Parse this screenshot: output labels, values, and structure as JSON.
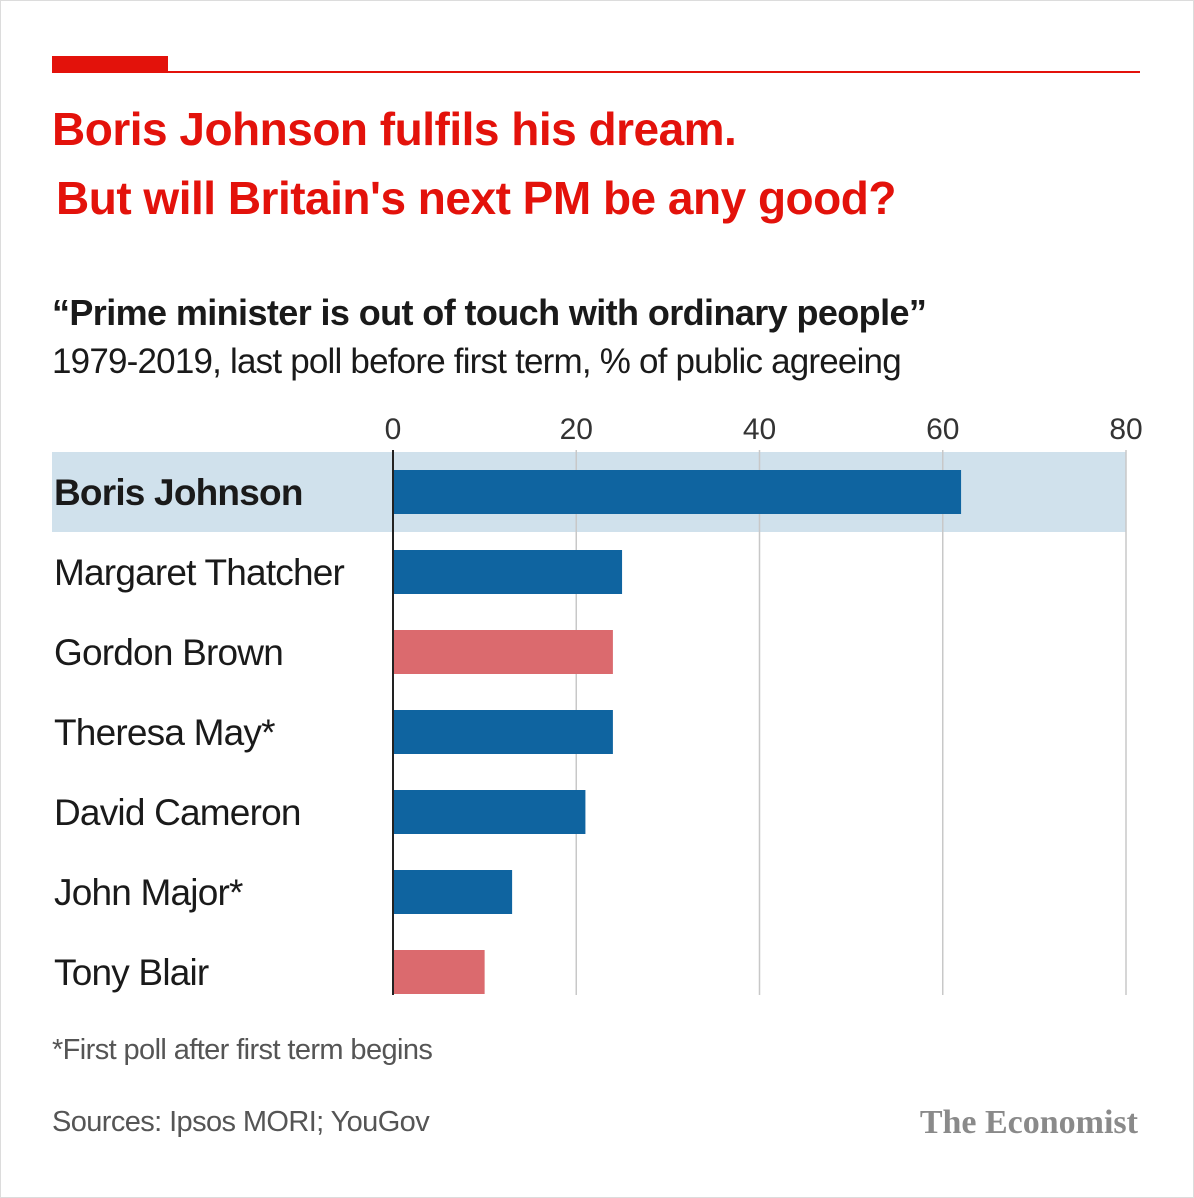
{
  "header": {
    "headline_line_1": "Boris Johnson fulfils his dream.",
    "headline_line_2": "But will Britain's next PM be any good?",
    "subtitle": "“Prime minister is out of touch with ordinary people”",
    "description": "1979-2019, last poll before first term, % of public agreeing"
  },
  "colors": {
    "accent": "#e3120b",
    "conservative_bar": "#0f64a0",
    "labour_bar": "#db6a6e",
    "highlight_band": "#d0e1ec",
    "gridline": "#c8c8c8",
    "baseline": "#222222"
  },
  "chart_data": {
    "type": "bar",
    "orientation": "horizontal",
    "title": "“Prime minister is out of touch with ordinary people”",
    "xlim": [
      0,
      80
    ],
    "ticks": [
      "0",
      "20",
      "40",
      "60",
      "80"
    ],
    "tick_values": [
      0,
      20,
      40,
      60,
      80
    ],
    "grid": true,
    "categories": [
      "Boris Johnson",
      "Margaret Thatcher",
      "Gordon Brown",
      "Theresa May*",
      "David Cameron",
      "John Major*",
      "Tony Blair"
    ],
    "values": [
      62,
      25,
      24,
      24,
      21,
      13,
      10
    ],
    "party": [
      "conservative",
      "conservative",
      "labour",
      "conservative",
      "conservative",
      "conservative",
      "labour"
    ],
    "highlight": [
      true,
      false,
      false,
      false,
      false,
      false,
      false
    ]
  },
  "footer": {
    "footnote": "*First poll after first term begins",
    "sources": "Sources: Ipsos MORI; YouGov",
    "brand": "The Economist"
  }
}
